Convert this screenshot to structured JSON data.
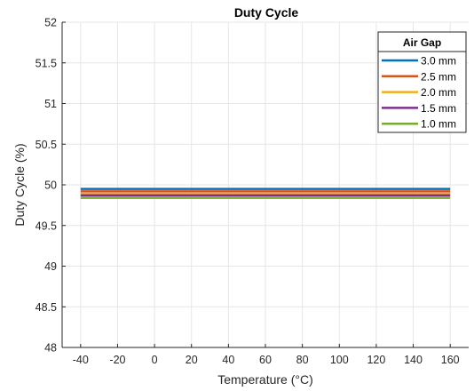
{
  "chart_data": {
    "type": "line",
    "title": "Duty Cycle",
    "xlabel": "Temperature (°C)",
    "ylabel": "Duty Cycle (%)",
    "xlim": [
      -50,
      170
    ],
    "ylim": [
      48,
      52
    ],
    "xticks": [
      -40,
      -20,
      0,
      20,
      40,
      60,
      80,
      100,
      120,
      140,
      160
    ],
    "xtick_labels": [
      "-40",
      "-20",
      "0",
      "20",
      "40",
      "60",
      "80",
      "100",
      "120",
      "140",
      "160"
    ],
    "yticks": [
      48,
      48.5,
      49,
      49.5,
      50,
      50.5,
      51,
      51.5,
      52
    ],
    "ytick_labels": [
      "48",
      "48.5",
      "49",
      "49.5",
      "50",
      "50.5",
      "51",
      "51.5",
      "52"
    ],
    "grid": true,
    "legend": {
      "title": "Air Gap",
      "placement": "top-right"
    },
    "series": [
      {
        "name": "3.0 mm",
        "color": "#0072BD",
        "x": [
          -40,
          160
        ],
        "y": [
          49.95,
          49.95
        ]
      },
      {
        "name": "2.5 mm",
        "color": "#D95319",
        "x": [
          -40,
          160
        ],
        "y": [
          49.92,
          49.92
        ]
      },
      {
        "name": "2.0 mm",
        "color": "#EDB120",
        "x": [
          -40,
          160
        ],
        "y": [
          49.89,
          49.89
        ]
      },
      {
        "name": "1.5 mm",
        "color": "#7E2F8E",
        "x": [
          -40,
          160
        ],
        "y": [
          49.87,
          49.87
        ]
      },
      {
        "name": "1.0 mm",
        "color": "#77AC30",
        "x": [
          -40,
          160
        ],
        "y": [
          49.84,
          49.84
        ]
      }
    ]
  }
}
